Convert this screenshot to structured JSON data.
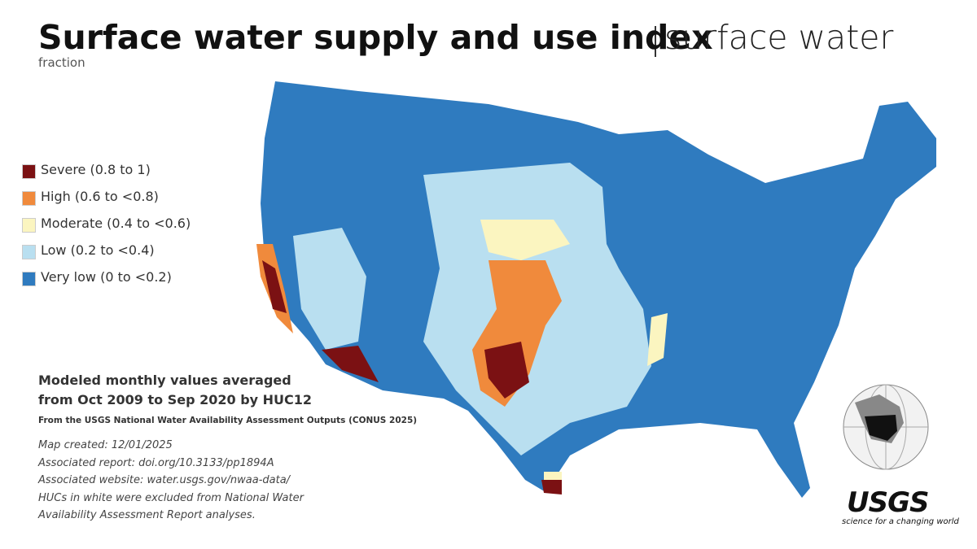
{
  "title": "Surface water supply and use index",
  "title_suffix": "surface water",
  "subtitle": "fraction",
  "legend": [
    {
      "label": "Severe (0.8 to 1)",
      "color": "#7b1113"
    },
    {
      "label": "High (0.6 to <0.8)",
      "color": "#f08a3c"
    },
    {
      "label": "Moderate (0.4 to <0.6)",
      "color": "#fbf5c0"
    },
    {
      "label": "Low (0.2 to <0.4)",
      "color": "#b9dff0"
    },
    {
      "label": "Very low (0 to <0.2)",
      "color": "#2f7bbf"
    }
  ],
  "notes": {
    "heading": [
      "Modeled monthly values averaged",
      "from Oct 2009 to Sep 2020 by HUC12"
    ],
    "source": "From the USGS National Water Availability Assessment Outputs (CONUS 2025)",
    "details": [
      "Map created: 12/01/2025",
      "Associated report: doi.org/10.3133/pp1894A",
      "Associated website: water.usgs.gov/nwaa-data/",
      "HUCs in white were excluded from National Water",
      "Availability Assessment Report analyses."
    ]
  },
  "logo": {
    "name": "USGS",
    "tagline": "science for a changing world"
  }
}
